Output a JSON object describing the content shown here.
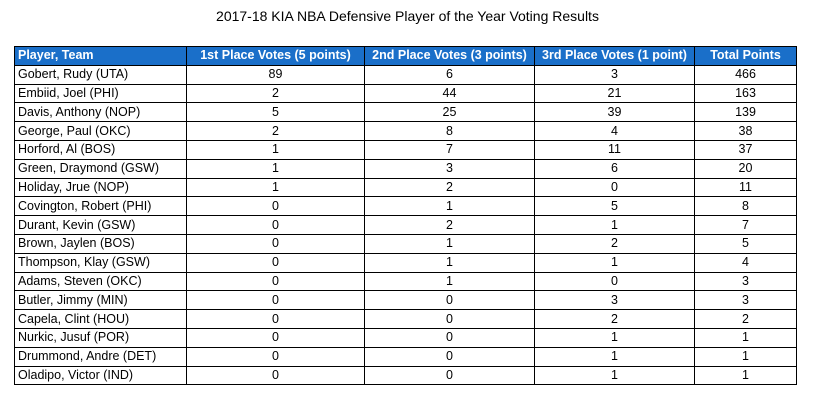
{
  "chart_data": {
    "type": "table",
    "title": "2017-18 KIA NBA Defensive Player of the Year Voting Results",
    "columns": [
      "Player, Team",
      "1st Place Votes (5 points)",
      "2nd Place Votes (3 points)",
      "3rd Place Votes (1 point)",
      "Total Points"
    ],
    "rows": [
      [
        "Gobert, Rudy (UTA)",
        "89",
        "6",
        "3",
        "466"
      ],
      [
        "Embiid, Joel (PHI)",
        "2",
        "44",
        "21",
        "163"
      ],
      [
        "Davis, Anthony (NOP)",
        "5",
        "25",
        "39",
        "139"
      ],
      [
        "George, Paul (OKC)",
        "2",
        "8",
        "4",
        "38"
      ],
      [
        "Horford, Al (BOS)",
        "1",
        "7",
        "11",
        "37"
      ],
      [
        "Green, Draymond (GSW)",
        "1",
        "3",
        "6",
        "20"
      ],
      [
        "Holiday, Jrue (NOP)",
        "1",
        "2",
        "0",
        "11"
      ],
      [
        "Covington, Robert (PHI)",
        "0",
        "1",
        "5",
        "8"
      ],
      [
        "Durant, Kevin (GSW)",
        "0",
        "2",
        "1",
        "7"
      ],
      [
        "Brown, Jaylen (BOS)",
        "0",
        "1",
        "2",
        "5"
      ],
      [
        "Thompson, Klay (GSW)",
        "0",
        "1",
        "1",
        "4"
      ],
      [
        "Adams, Steven (OKC)",
        "0",
        "1",
        "0",
        "3"
      ],
      [
        "Butler, Jimmy (MIN)",
        "0",
        "0",
        "3",
        "3"
      ],
      [
        "Capela, Clint (HOU)",
        "0",
        "0",
        "2",
        "2"
      ],
      [
        "Nurkic, Jusuf (POR)",
        "0",
        "0",
        "1",
        "1"
      ],
      [
        "Drummond, Andre (DET)",
        "0",
        "0",
        "1",
        "1"
      ],
      [
        "Oladipo, Victor (IND)",
        "0",
        "0",
        "1",
        "1"
      ]
    ],
    "header_color": "#1a6fc9"
  }
}
